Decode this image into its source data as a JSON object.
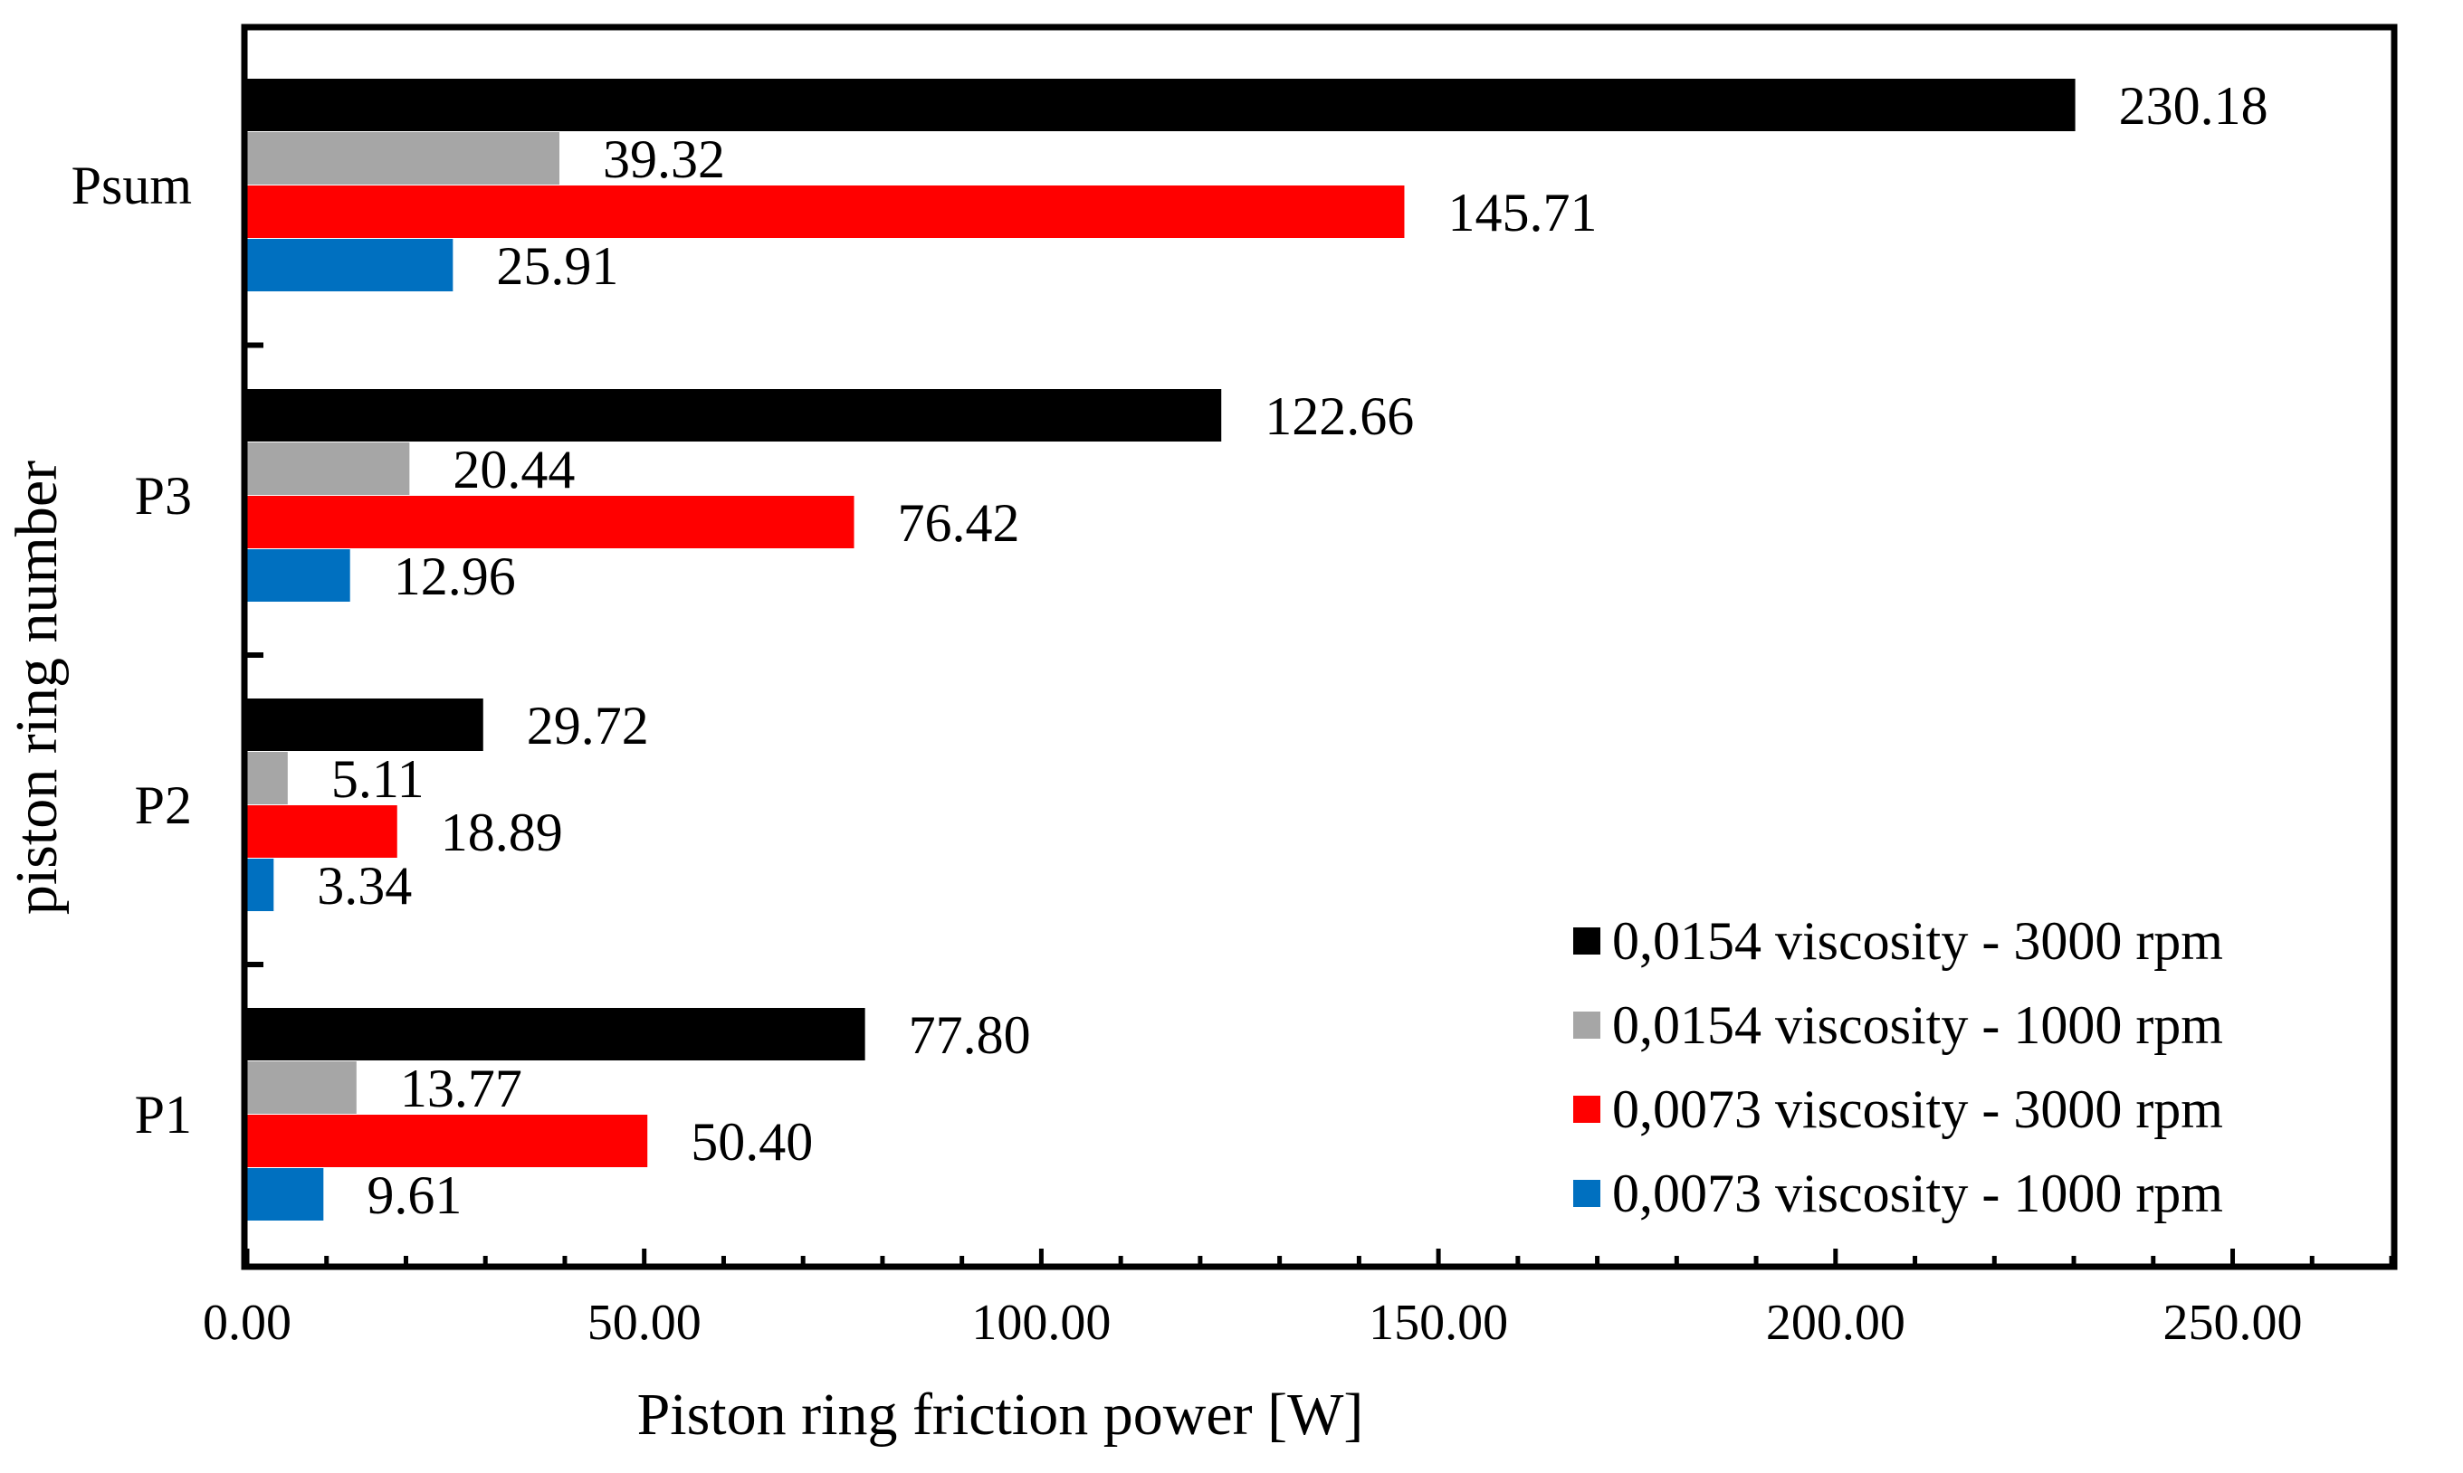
{
  "chart_data": {
    "type": "bar",
    "orientation": "horizontal",
    "title": "",
    "xlabel": "Piston ring friction power [W]",
    "ylabel": "piston ring number",
    "xlim": [
      0,
      270
    ],
    "x_ticks": [
      0,
      50,
      100,
      150,
      200,
      250
    ],
    "x_tick_labels": [
      "0.00",
      "50.00",
      "100.00",
      "150.00",
      "200.00",
      "250.00"
    ],
    "x_minor_step": 10,
    "categories": [
      "Psum",
      "P3",
      "P2",
      "P1"
    ],
    "series": [
      {
        "name": "0,0154 viscosity - 3000 rpm",
        "color": "#000000",
        "values": [
          230.18,
          122.66,
          29.72,
          77.8
        ],
        "labels": [
          "230.18",
          "122.66",
          "29.72",
          "77.80"
        ]
      },
      {
        "name": "0,0154 viscosity - 1000 rpm",
        "color": "#a6a6a6",
        "values": [
          39.32,
          20.44,
          5.11,
          13.77
        ],
        "labels": [
          "39.32",
          "20.44",
          "5.11",
          "13.77"
        ]
      },
      {
        "name": "0,0073 viscosity - 3000 rpm",
        "color": "#ff0000",
        "values": [
          145.71,
          76.42,
          18.89,
          50.4
        ],
        "labels": [
          "145.71",
          "76.42",
          "18.89",
          "50.40"
        ]
      },
      {
        "name": "0,0073 viscosity - 1000 rpm",
        "color": "#0070c0",
        "values": [
          25.91,
          12.96,
          3.34,
          9.61
        ],
        "labels": [
          "25.91",
          "12.96",
          "3.34",
          "9.61"
        ]
      }
    ],
    "legend_position": "bottom-right",
    "grid": false
  }
}
